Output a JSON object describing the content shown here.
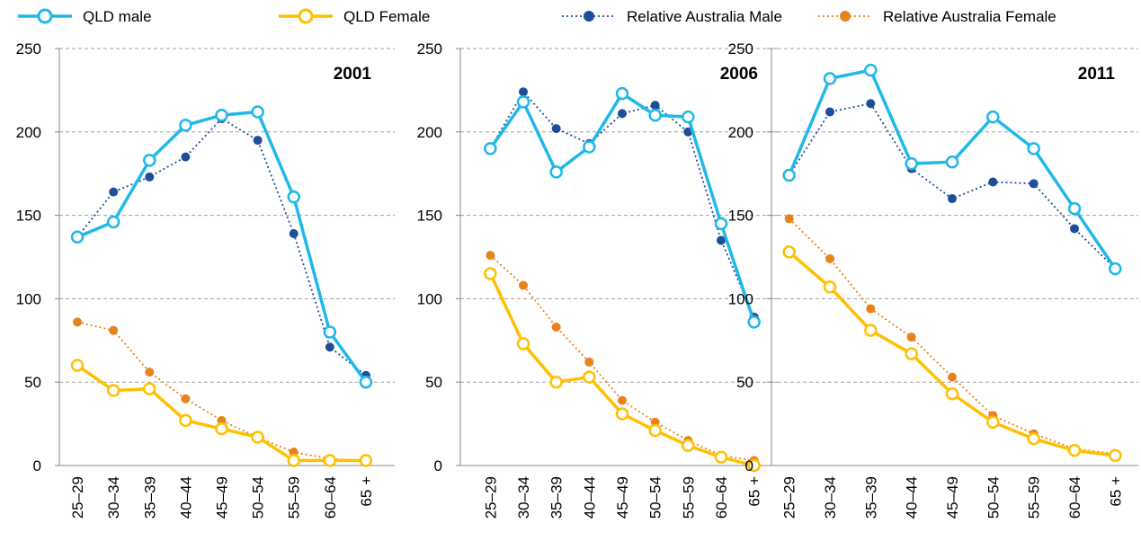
{
  "chart_data": [
    {
      "type": "line",
      "title": "2001",
      "categories": [
        "25–29",
        "30–34",
        "35–39",
        "40–44",
        "45–49",
        "50–54",
        "55–59",
        "60–64",
        "65 +"
      ],
      "ylim": [
        0,
        250
      ],
      "yticks": [
        0,
        50,
        100,
        150,
        200,
        250
      ],
      "grid": true,
      "series": [
        {
          "name": "QLD male",
          "color": "#1fb8e8",
          "values": [
            137,
            146,
            183,
            204,
            210,
            212,
            161,
            80,
            50
          ]
        },
        {
          "name": "QLD Female",
          "color": "#ffc000",
          "values": [
            60,
            45,
            46,
            27,
            22,
            17,
            3,
            3,
            3
          ]
        },
        {
          "name": "Relative Australia Male",
          "color": "#1f4e99",
          "values": [
            137,
            164,
            173,
            185,
            208,
            195,
            139,
            71,
            54
          ]
        },
        {
          "name": "Relative Australia Female",
          "color": "#e8821e",
          "values": [
            86,
            81,
            56,
            40,
            27,
            17,
            8,
            4,
            3
          ]
        }
      ]
    },
    {
      "type": "line",
      "title": "2006",
      "categories": [
        "25–29",
        "30–34",
        "35–39",
        "40–44",
        "45–49",
        "50–54",
        "55–59",
        "60–64",
        "65 +"
      ],
      "ylim": [
        0,
        250
      ],
      "yticks": [
        0,
        50,
        100,
        150,
        200,
        250
      ],
      "grid": true,
      "series": [
        {
          "name": "QLD male",
          "color": "#1fb8e8",
          "values": [
            190,
            218,
            176,
            191,
            223,
            210,
            209,
            145,
            86
          ]
        },
        {
          "name": "QLD Female",
          "color": "#ffc000",
          "values": [
            115,
            73,
            50,
            53,
            31,
            21,
            12,
            5,
            0
          ]
        },
        {
          "name": "Relative Australia Male",
          "color": "#1f4e99",
          "values": [
            190,
            224,
            202,
            193,
            211,
            216,
            200,
            135,
            89
          ]
        },
        {
          "name": "Relative Australia Female",
          "color": "#e8821e",
          "values": [
            126,
            108,
            83,
            62,
            39,
            26,
            15,
            6,
            3
          ]
        }
      ]
    },
    {
      "type": "line",
      "title": "2011",
      "categories": [
        "25–29",
        "30–34",
        "35–39",
        "40–44",
        "45–49",
        "50–54",
        "55–59",
        "60–64",
        "65 +"
      ],
      "ylim": [
        0,
        250
      ],
      "yticks": [
        0,
        50,
        100,
        150,
        200,
        250
      ],
      "grid": true,
      "series": [
        {
          "name": "QLD male",
          "color": "#1fb8e8",
          "values": [
            174,
            232,
            237,
            181,
            182,
            209,
            190,
            154,
            118
          ]
        },
        {
          "name": "QLD Female",
          "color": "#ffc000",
          "values": [
            128,
            107,
            81,
            67,
            43,
            26,
            16,
            9,
            6
          ]
        },
        {
          "name": "Relative Australia Male",
          "color": "#1f4e99",
          "values": [
            174,
            212,
            217,
            178,
            160,
            170,
            169,
            142,
            118
          ]
        },
        {
          "name": "Relative Australia Female",
          "color": "#e8821e",
          "values": [
            148,
            124,
            94,
            77,
            53,
            30,
            19,
            10,
            7
          ]
        }
      ]
    }
  ]
}
